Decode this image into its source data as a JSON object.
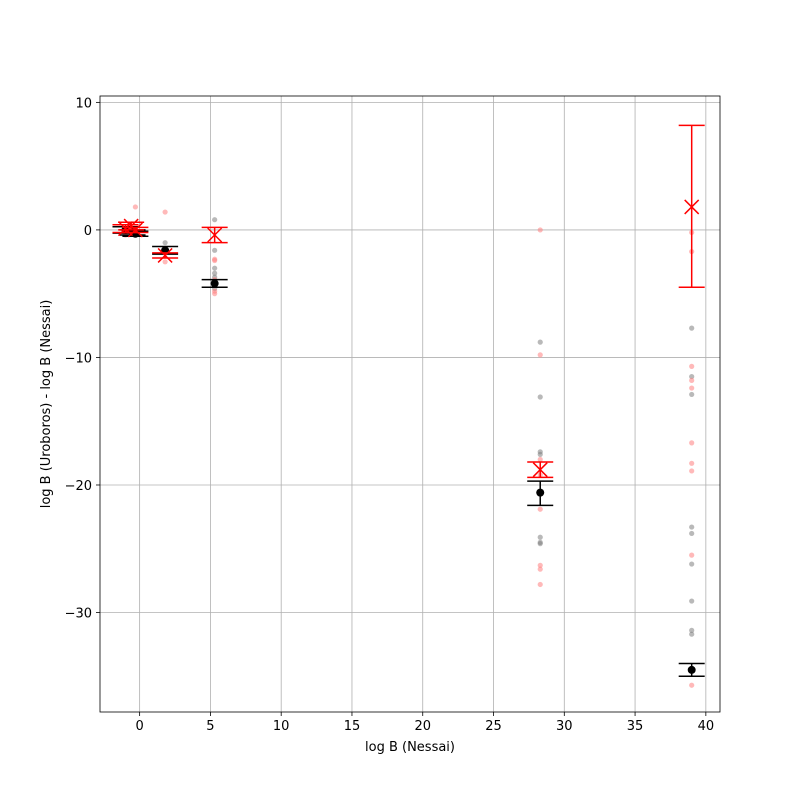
{
  "chart_data": {
    "type": "scatter",
    "title": "",
    "xlabel": "log B (Nessai)",
    "ylabel": "log B (Uroboros) - log B (Nessai)",
    "xlim": [
      -2.8,
      41
    ],
    "ylim": [
      -37.8,
      10.5
    ],
    "xticks": [
      0,
      5,
      10,
      15,
      20,
      25,
      30,
      35,
      40
    ],
    "yticks": [
      10,
      0,
      -10,
      -20,
      -30
    ],
    "xtick_labels": [
      "0",
      "5",
      "10",
      "15",
      "20",
      "25",
      "30",
      "35",
      "40"
    ],
    "ytick_labels": [
      "10",
      "0",
      "−10",
      "−20",
      "−30"
    ],
    "grid": true,
    "colors": {
      "black": "#000000",
      "red": "#ff0000",
      "black_raw": "#7f7f7f",
      "red_raw": "#ff8080"
    },
    "series": [
      {
        "marker": "o",
        "color": "#000000",
        "summary": [
          {
            "x": -1.0,
            "y": 0.0,
            "yerr_low": 0.25,
            "yerr_high": 0.25
          },
          {
            "x": -0.5,
            "y": -0.2,
            "yerr_low": 0.2,
            "yerr_high": 0.2
          },
          {
            "x": -0.3,
            "y": -0.3,
            "yerr_low": 0.2,
            "yerr_high": 0.2
          },
          {
            "x": 1.8,
            "y": -1.6,
            "yerr_low": 0.3,
            "yerr_high": 0.3
          },
          {
            "x": 5.3,
            "y": -4.2,
            "yerr_low": 0.3,
            "yerr_high": 0.3
          },
          {
            "x": 28.3,
            "y": -20.6,
            "yerr_low": 1.0,
            "yerr_high": 0.9
          },
          {
            "x": 39.0,
            "y": -34.5,
            "yerr_low": 0.5,
            "yerr_high": 0.5
          }
        ],
        "raw": [
          {
            "x": -0.5,
            "y": 0.1
          },
          {
            "x": -0.4,
            "y": -0.1
          },
          {
            "x": 1.8,
            "y": -1.0
          },
          {
            "x": 5.3,
            "y": 0.8
          },
          {
            "x": 5.3,
            "y": -1.6
          },
          {
            "x": 5.3,
            "y": -3.0
          },
          {
            "x": 5.3,
            "y": -3.4
          },
          {
            "x": 5.3,
            "y": -3.7
          },
          {
            "x": 5.3,
            "y": -4.6
          },
          {
            "x": 28.3,
            "y": -8.8
          },
          {
            "x": 28.3,
            "y": -13.1
          },
          {
            "x": 28.3,
            "y": -17.4
          },
          {
            "x": 28.3,
            "y": -17.6
          },
          {
            "x": 28.3,
            "y": -24.1
          },
          {
            "x": 28.3,
            "y": -24.5
          },
          {
            "x": 28.3,
            "y": -24.6
          },
          {
            "x": 39.0,
            "y": -7.7
          },
          {
            "x": 39.0,
            "y": -11.5
          },
          {
            "x": 39.0,
            "y": -12.9
          },
          {
            "x": 39.0,
            "y": -23.3
          },
          {
            "x": 39.0,
            "y": -23.8
          },
          {
            "x": 39.0,
            "y": -26.2
          },
          {
            "x": 39.0,
            "y": -29.1
          },
          {
            "x": 39.0,
            "y": -31.4
          },
          {
            "x": 39.0,
            "y": -31.7
          }
        ]
      },
      {
        "marker": "x",
        "color": "#ff0000",
        "summary": [
          {
            "x": -1.0,
            "y": 0.1,
            "yerr_low": 0.3,
            "yerr_high": 0.3
          },
          {
            "x": -0.6,
            "y": 0.3,
            "yerr_low": 0.3,
            "yerr_high": 0.3
          },
          {
            "x": -0.3,
            "y": 0.0,
            "yerr_low": 0.2,
            "yerr_high": 0.2
          },
          {
            "x": 1.8,
            "y": -2.0,
            "yerr_low": 0.2,
            "yerr_high": 0.2
          },
          {
            "x": 5.3,
            "y": -0.4,
            "yerr_low": 0.6,
            "yerr_high": 0.6
          },
          {
            "x": 28.3,
            "y": -18.8,
            "yerr_low": 0.6,
            "yerr_high": 0.6
          },
          {
            "x": 39.0,
            "y": 1.8,
            "yerr_low": 6.3,
            "yerr_high": 6.4
          }
        ],
        "raw": [
          {
            "x": -1.0,
            "y": 0.0
          },
          {
            "x": -1.0,
            "y": -0.4
          },
          {
            "x": -0.6,
            "y": 0.1
          },
          {
            "x": -0.3,
            "y": 1.8
          },
          {
            "x": 1.8,
            "y": 1.4
          },
          {
            "x": 1.8,
            "y": -2.5
          },
          {
            "x": 5.3,
            "y": -2.3
          },
          {
            "x": 5.3,
            "y": -2.4
          },
          {
            "x": 5.3,
            "y": -3.9
          },
          {
            "x": 5.3,
            "y": -4.8
          },
          {
            "x": 5.3,
            "y": -5.0
          },
          {
            "x": 28.3,
            "y": 0.0
          },
          {
            "x": 28.3,
            "y": -9.8
          },
          {
            "x": 28.3,
            "y": -18.0
          },
          {
            "x": 28.3,
            "y": -19.2
          },
          {
            "x": 28.3,
            "y": -21.9
          },
          {
            "x": 28.3,
            "y": -26.3
          },
          {
            "x": 28.3,
            "y": -26.6
          },
          {
            "x": 28.3,
            "y": -27.8
          },
          {
            "x": 39.0,
            "y": -0.2
          },
          {
            "x": 39.0,
            "y": -1.7
          },
          {
            "x": 39.0,
            "y": -10.7
          },
          {
            "x": 39.0,
            "y": -11.8
          },
          {
            "x": 39.0,
            "y": -12.4
          },
          {
            "x": 39.0,
            "y": -16.7
          },
          {
            "x": 39.0,
            "y": -18.3
          },
          {
            "x": 39.0,
            "y": -18.9
          },
          {
            "x": 39.0,
            "y": -25.5
          },
          {
            "x": 39.0,
            "y": -35.7
          }
        ]
      }
    ]
  }
}
